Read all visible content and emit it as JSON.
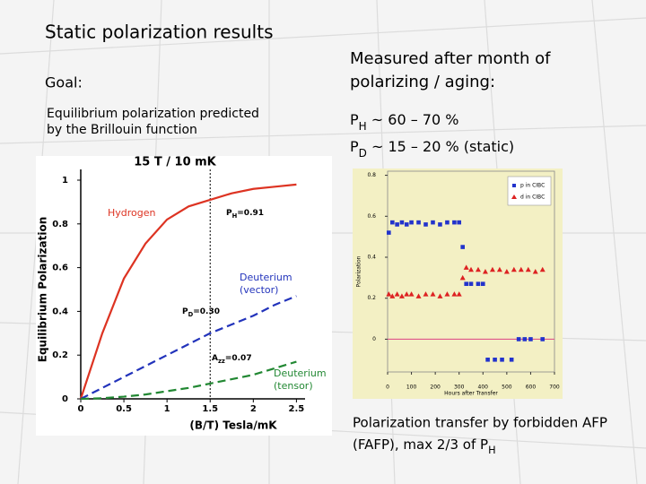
{
  "slide": {
    "title": "Static polarization results",
    "goal_label": "Goal:",
    "goal_lines": [
      "Equilibrium polarization predicted",
      "by the Brillouin function"
    ],
    "measured_lines": [
      "Measured after month of",
      "polarizing / aging:"
    ],
    "ph": {
      "main": "P",
      "sub": "H",
      "rest": " ~ 60 – 70 %"
    },
    "pd": {
      "main": "P",
      "sub": "D",
      "rest": " ~ 15 – 20 % (static)"
    },
    "transfer_lines": [
      "Polarization transfer by forbidden AFP",
      {
        "main": "(FAFP), max 2/3 of P",
        "sub": "H"
      }
    ]
  },
  "chart_data": [
    {
      "type": "line",
      "title": "15 T / 10 mK",
      "x_label": "(B/T)  Tesla/mK",
      "y_label": "Equilibrium Polarization",
      "x": [
        0,
        0.25,
        0.5,
        0.75,
        1,
        1.25,
        1.5,
        1.75,
        2,
        2.25,
        2.5
      ],
      "series": [
        {
          "label": [
            "Hydrogen"
          ],
          "color": "#dd3322",
          "dash": false,
          "values": [
            0,
            0.3,
            0.55,
            0.71,
            0.82,
            0.88,
            0.91,
            0.94,
            0.96,
            0.97,
            0.98
          ]
        },
        {
          "label": [
            "Deuterium",
            "(vector)"
          ],
          "color": "#2233bb",
          "dash": true,
          "values": [
            0,
            0.05,
            0.1,
            0.15,
            0.2,
            0.25,
            0.3,
            0.34,
            0.38,
            0.43,
            0.47
          ]
        },
        {
          "label": [
            "Deuterium",
            "(tensor)"
          ],
          "color": "#228833",
          "dash": true,
          "values": [
            0,
            0.003,
            0.01,
            0.02,
            0.035,
            0.05,
            0.07,
            0.09,
            0.11,
            0.14,
            0.17
          ]
        }
      ],
      "annotations": [
        {
          "main": "P",
          "sub": "H",
          "rest": "=0.91"
        },
        {
          "main": "P",
          "sub": "D",
          "rest": "=0.30"
        },
        {
          "main": "A",
          "sub": "zz",
          "rest": "=0.07"
        }
      ],
      "marker_x": 1.5,
      "xlim": [
        0,
        2.6
      ],
      "xticks": [
        0,
        0.5,
        1,
        1.5,
        2,
        2.5
      ],
      "ylim": [
        0,
        1
      ],
      "yticks": [
        0,
        0.2,
        0.4,
        0.6,
        0.8,
        1
      ]
    },
    {
      "type": "scatter",
      "x_label": "Hours after Transfer",
      "y_label": "Polarization",
      "legend": "upper right",
      "series": [
        {
          "name": "p in CIBC",
          "color": "#2233cc",
          "marker": "square",
          "x": [
            5,
            20,
            40,
            60,
            80,
            100,
            130,
            160,
            190,
            220,
            250,
            280,
            300,
            315,
            330,
            350,
            380,
            400,
            420,
            450,
            480,
            520,
            550,
            575,
            600,
            650
          ],
          "values": [
            0.52,
            0.57,
            0.56,
            0.57,
            0.56,
            0.57,
            0.57,
            0.56,
            0.57,
            0.56,
            0.57,
            0.57,
            0.57,
            0.45,
            0.27,
            0.27,
            0.27,
            0.27,
            -0.1,
            -0.1,
            -0.1,
            -0.1,
            0,
            0,
            0,
            0
          ]
        },
        {
          "name": "d in CIBC",
          "color": "#dd2222",
          "marker": "triangle",
          "x": [
            5,
            20,
            40,
            60,
            80,
            100,
            130,
            160,
            190,
            220,
            250,
            280,
            300,
            315,
            330,
            350,
            380,
            410,
            440,
            470,
            500,
            530,
            560,
            590,
            620,
            650
          ],
          "values": [
            0.22,
            0.21,
            0.22,
            0.21,
            0.22,
            0.22,
            0.21,
            0.22,
            0.22,
            0.21,
            0.22,
            0.22,
            0.22,
            0.3,
            0.35,
            0.34,
            0.34,
            0.33,
            0.34,
            0.34,
            0.33,
            0.34,
            0.34,
            0.34,
            0.33,
            0.34
          ]
        }
      ],
      "xlim": [
        0,
        700
      ],
      "xticks": [
        0,
        100,
        200,
        300,
        400,
        500,
        600,
        700
      ],
      "ylim": [
        -0.16,
        0.82
      ],
      "yticks": [
        0,
        0.2,
        0.4,
        0.6,
        0.8
      ]
    }
  ]
}
